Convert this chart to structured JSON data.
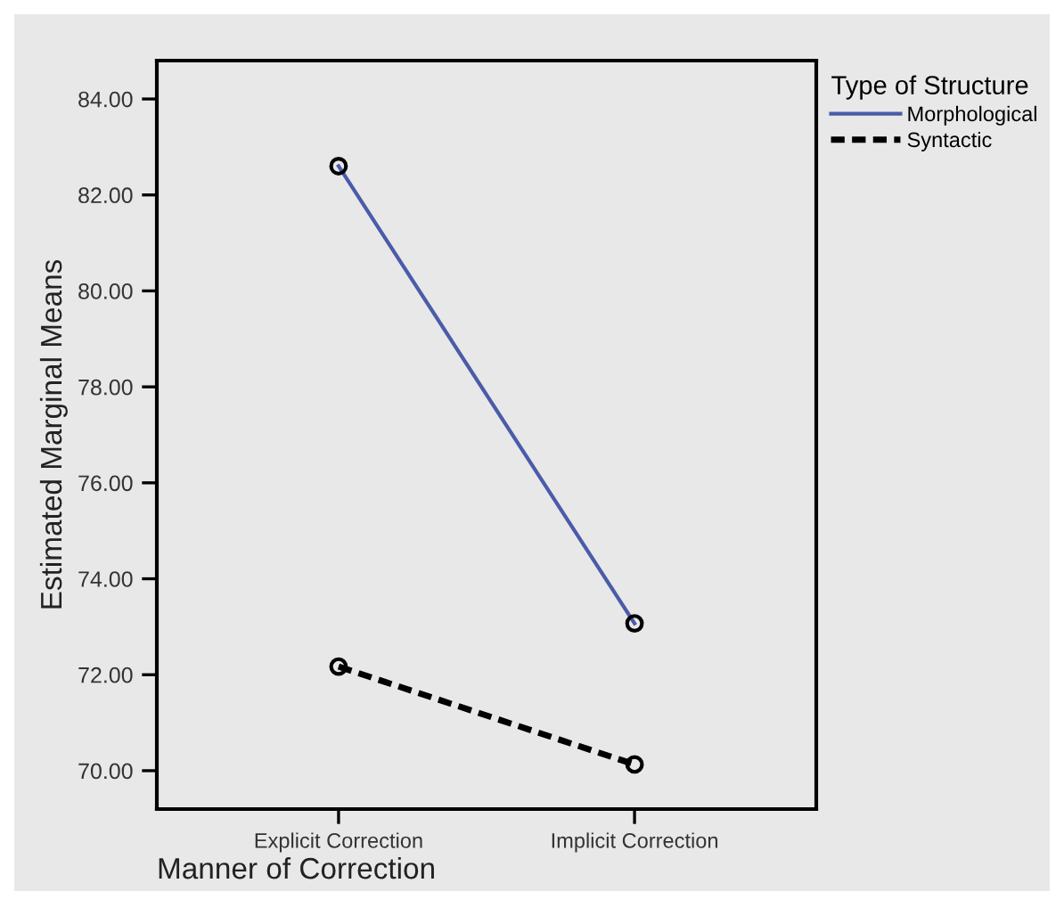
{
  "chart_data": {
    "type": "line",
    "xlabel": "Manner of Correction",
    "ylabel": "Estimated Marginal Means",
    "legend_title": "Type of Structure",
    "categories": [
      "Explicit Correction",
      "Implicit Correction"
    ],
    "series": [
      {
        "name": "Morphological",
        "color": "#4a5ca8",
        "values": [
          82.6,
          73.07
        ],
        "line_style": "solid"
      },
      {
        "name": "Syntactic",
        "color": "#000000",
        "values": [
          72.17,
          70.13
        ],
        "line_style": "dashed"
      }
    ],
    "ylim": [
      69.2,
      84.8
    ],
    "yticks": [
      {
        "value": 70,
        "label": "70.00"
      },
      {
        "value": 72,
        "label": "72.00"
      },
      {
        "value": 74,
        "label": "74.00"
      },
      {
        "value": 76,
        "label": "76.00"
      },
      {
        "value": 78,
        "label": "78.00"
      },
      {
        "value": 80,
        "label": "80.00"
      },
      {
        "value": 82,
        "label": "82.00"
      },
      {
        "value": 84,
        "label": "84.00"
      }
    ],
    "marker": "circle",
    "grid": false,
    "legend": "top right"
  }
}
